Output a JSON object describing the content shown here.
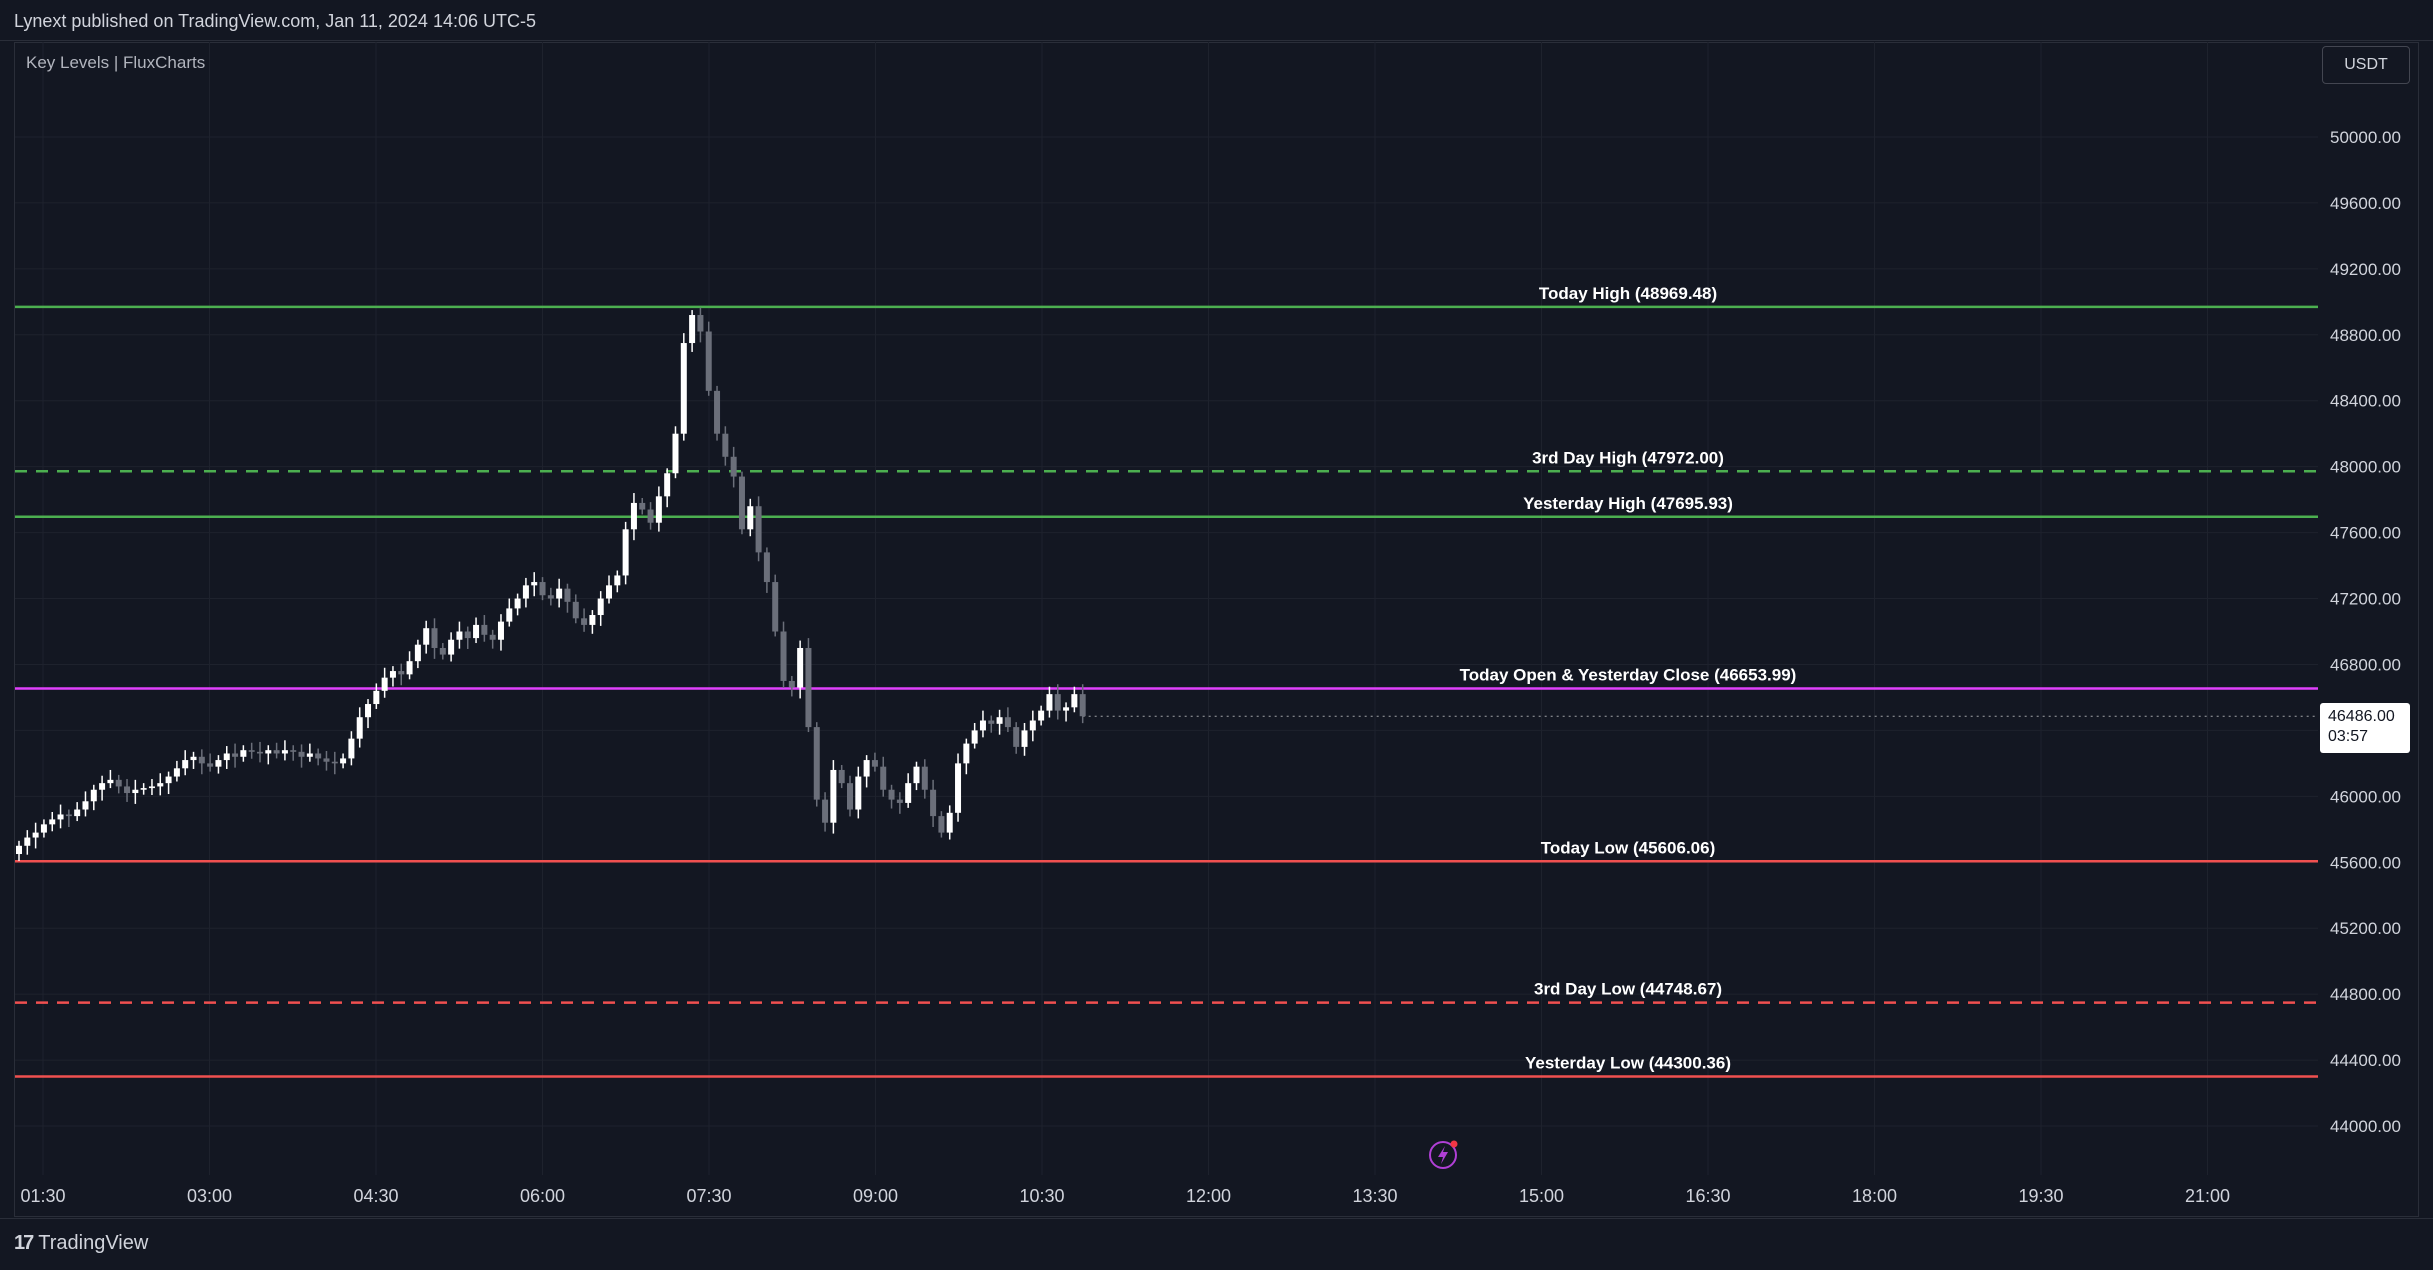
{
  "header": {
    "publisher_line": "Lynext published on TradingView.com, Jan 11, 2024 14:06 UTC-5"
  },
  "indicator": {
    "name": "Key Levels | FluxCharts"
  },
  "currency": "USDT",
  "last_price": {
    "value": "46486.00",
    "countdown": "03:57"
  },
  "footer": {
    "logo_mark": "17",
    "brand": "TradingView"
  },
  "icons": {
    "bolt": "lightning-bolt-icon"
  },
  "colors": {
    "background": "#131722",
    "grid": "#1e222d",
    "green": "#4caf50",
    "red": "#f05050",
    "magenta": "#e040fb",
    "bull_candle": "#ffffff",
    "bear_candle": "#6b6f7a"
  },
  "chart_data": {
    "type": "candlestick",
    "symbol_currency": "USDT",
    "ylim": [
      43500,
      50500
    ],
    "y_ticks": [
      "50000.00",
      "49600.00",
      "49200.00",
      "48800.00",
      "48400.00",
      "48000.00",
      "47600.00",
      "47200.00",
      "46800.00",
      "46400.00",
      "46000.00",
      "45600.00",
      "45200.00",
      "44800.00",
      "44400.00",
      "44000.00"
    ],
    "x_ticks": [
      "01:30",
      "03:00",
      "04:30",
      "06:00",
      "07:30",
      "09:00",
      "10:30",
      "12:00",
      "13:30",
      "15:00",
      "16:30",
      "18:00",
      "19:30",
      "21:00"
    ],
    "levels": [
      {
        "label": "Today High (48969.48)",
        "value": 48969.48,
        "color": "#4caf50",
        "style": "solid"
      },
      {
        "label": "3rd Day High (47972.00)",
        "value": 47972.0,
        "color": "#4caf50",
        "style": "dashed"
      },
      {
        "label": "Yesterday High (47695.93)",
        "value": 47695.93,
        "color": "#4caf50",
        "style": "solid"
      },
      {
        "label": "Today Open & Yesterday Close (46653.99)",
        "value": 46653.99,
        "color": "#e040fb",
        "style": "solid"
      },
      {
        "label": "Today Low (45606.06)",
        "value": 45606.06,
        "color": "#f05050",
        "style": "solid"
      },
      {
        "label": "3rd Day Low (44748.67)",
        "value": 44748.67,
        "color": "#f05050",
        "style": "dashed"
      },
      {
        "label": "Yesterday Low (44300.36)",
        "value": 44300.36,
        "color": "#f05050",
        "style": "solid"
      }
    ],
    "closes": [
      45700,
      45750,
      45780,
      45830,
      45860,
      45890,
      45880,
      45920,
      45970,
      46040,
      46080,
      46100,
      46060,
      46020,
      46040,
      46050,
      46060,
      46080,
      46120,
      46170,
      46220,
      46240,
      46200,
      46180,
      46220,
      46260,
      46240,
      46280,
      46270,
      46260,
      46280,
      46260,
      46280,
      46270,
      46240,
      46260,
      46230,
      46210,
      46200,
      46230,
      46350,
      46480,
      46560,
      46640,
      46720,
      46760,
      46740,
      46820,
      46920,
      47020,
      46900,
      46860,
      46950,
      47000,
      46960,
      47040,
      46980,
      46950,
      47060,
      47140,
      47200,
      47280,
      47300,
      47220,
      47200,
      47260,
      47180,
      47080,
      47040,
      47100,
      47200,
      47280,
      47340,
      47620,
      47780,
      47740,
      47660,
      47820,
      47960,
      48200,
      48750,
      48920,
      48820,
      48460,
      48200,
      48060,
      47940,
      47620,
      47760,
      47480,
      47300,
      47000,
      46700,
      46660,
      46900,
      46420,
      45980,
      45840,
      46160,
      46080,
      45920,
      46120,
      46220,
      46180,
      46040,
      45980,
      45960,
      46080,
      46180,
      46040,
      45880,
      45780,
      45900,
      46200,
      46320,
      46400,
      46460,
      46440,
      46480,
      46420,
      46300,
      46400,
      46460,
      46520,
      46620,
      46520,
      46540,
      46620,
      46486
    ]
  }
}
